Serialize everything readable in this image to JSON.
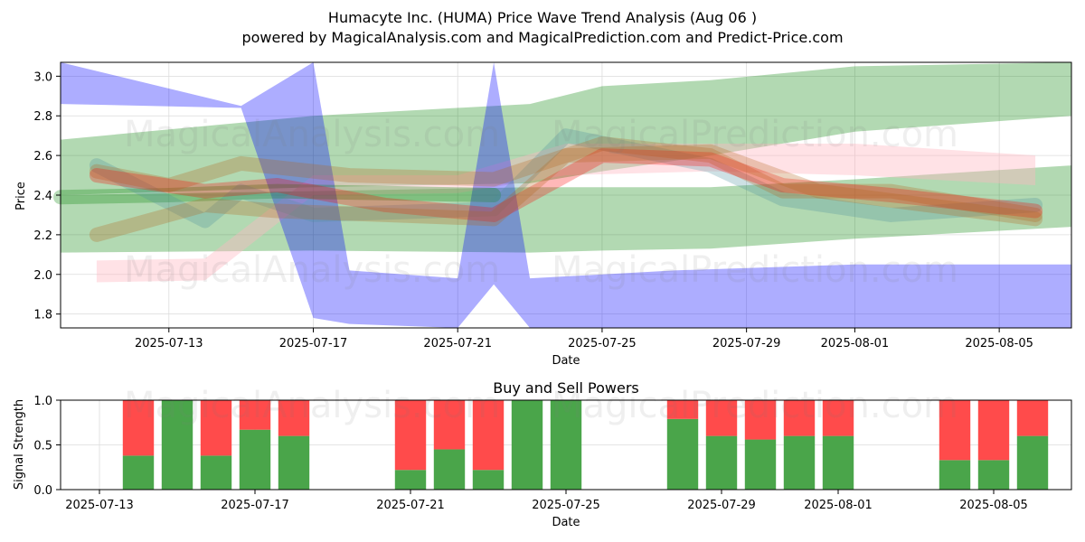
{
  "chart_data": [
    {
      "type": "area",
      "title_line1": "Humacyte Inc. (HUMA) Price Wave Trend Analysis (Aug 06 )",
      "title_line2": "powered by MagicalAnalysis.com and MagicalPrediction.com and Predict-Price.com",
      "xlabel": "Date",
      "ylabel": "Price",
      "xlim": [
        "2025-07-10",
        "2025-08-07"
      ],
      "ylim": [
        1.73,
        3.07
      ],
      "xticks": [
        "2025-07-13",
        "2025-07-17",
        "2025-07-21",
        "2025-07-25",
        "2025-07-29",
        "2025-08-01",
        "2025-08-05"
      ],
      "yticks": [
        1.8,
        2.0,
        2.2,
        2.4,
        2.6,
        2.8,
        3.0
      ],
      "ytick_labels": [
        "1.8",
        "2.0",
        "2.2",
        "2.4",
        "2.6",
        "2.8",
        "3.0"
      ],
      "watermarks": [
        "MagicalAnalysis.com",
        "MagicalPrediction.com",
        "MagicalAnalysis.com",
        "MagicalPrediction.com"
      ],
      "colors": {
        "blue": "#0000ff",
        "green": "#008000",
        "red": "#ff0000",
        "pink": "#ffb6c1",
        "orange": "#b5651d",
        "teal": "#4a8f9f"
      },
      "series": [
        {
          "name": "green-band-upper",
          "color": "green",
          "opacity": 0.3,
          "upper_x": [
            "2025-07-10",
            "2025-07-17",
            "2025-07-23",
            "2025-07-25",
            "2025-07-28",
            "2025-08-01",
            "2025-08-07"
          ],
          "upper": [
            2.68,
            2.8,
            2.86,
            2.95,
            2.98,
            3.05,
            3.07
          ],
          "lower": [
            2.4,
            2.44,
            2.46,
            2.52,
            2.6,
            2.72,
            2.8
          ]
        },
        {
          "name": "green-band-lower",
          "color": "green",
          "opacity": 0.3,
          "upper_x": [
            "2025-07-10",
            "2025-07-17",
            "2025-07-23",
            "2025-07-25",
            "2025-07-28",
            "2025-08-01",
            "2025-08-07"
          ],
          "upper": [
            2.4,
            2.42,
            2.44,
            2.44,
            2.44,
            2.48,
            2.55
          ],
          "lower": [
            2.11,
            2.12,
            2.11,
            2.12,
            2.13,
            2.18,
            2.24
          ]
        },
        {
          "name": "pink-band",
          "color": "pink",
          "opacity": 0.4,
          "upper_x": [
            "2025-07-11",
            "2025-07-14",
            "2025-07-17",
            "2025-07-21",
            "2025-07-24",
            "2025-07-28",
            "2025-08-01",
            "2025-08-06"
          ],
          "upper": [
            2.07,
            2.08,
            2.5,
            2.5,
            2.66,
            2.66,
            2.66,
            2.6
          ],
          "lower": [
            1.96,
            1.97,
            2.4,
            2.41,
            2.5,
            2.52,
            2.5,
            2.45
          ]
        },
        {
          "name": "blue-wave",
          "color": "blue",
          "opacity": 0.32,
          "x": [
            "2025-07-10",
            "2025-07-15",
            "2025-07-17",
            "2025-07-18",
            "2025-07-21",
            "2025-07-22",
            "2025-07-23",
            "2025-07-27",
            "2025-08-01",
            "2025-08-07"
          ],
          "upper": [
            3.07,
            2.85,
            3.07,
            2.02,
            1.98,
            3.07,
            1.98,
            2.02,
            2.05,
            2.05
          ],
          "lower": [
            2.86,
            2.84,
            1.78,
            1.75,
            1.73,
            1.95,
            1.73,
            1.73,
            1.73,
            1.73
          ]
        }
      ],
      "price_lines": [
        {
          "name": "price-green",
          "color": "green",
          "x": [
            "2025-07-10",
            "2025-07-13",
            "2025-07-16",
            "2025-07-19",
            "2025-07-22"
          ],
          "y": [
            2.39,
            2.4,
            2.42,
            2.41,
            2.4
          ]
        },
        {
          "name": "price-teal",
          "color": "teal",
          "x": [
            "2025-07-11",
            "2025-07-14",
            "2025-07-15",
            "2025-07-17",
            "2025-07-22",
            "2025-07-24",
            "2025-07-28",
            "2025-07-30",
            "2025-08-02",
            "2025-08-06"
          ],
          "y": [
            2.55,
            2.27,
            2.42,
            2.3,
            2.33,
            2.7,
            2.55,
            2.38,
            2.3,
            2.35
          ]
        },
        {
          "name": "price-orange",
          "color": "orange",
          "x": [
            "2025-07-11",
            "2025-07-13",
            "2025-07-15",
            "2025-07-18",
            "2025-07-22",
            "2025-07-25",
            "2025-07-28",
            "2025-07-30",
            "2025-08-02",
            "2025-08-06"
          ],
          "y": [
            2.52,
            2.45,
            2.56,
            2.5,
            2.48,
            2.66,
            2.6,
            2.42,
            2.42,
            2.3
          ]
        },
        {
          "name": "price-red",
          "color": "red",
          "x": [
            "2025-07-11",
            "2025-07-14",
            "2025-07-16",
            "2025-07-19",
            "2025-07-22",
            "2025-07-25",
            "2025-07-28",
            "2025-07-30",
            "2025-08-02",
            "2025-08-06"
          ],
          "y": [
            2.5,
            2.42,
            2.45,
            2.35,
            2.3,
            2.6,
            2.58,
            2.45,
            2.4,
            2.32
          ]
        },
        {
          "name": "price-brown",
          "color": "orange",
          "x": [
            "2025-07-11",
            "2025-07-14",
            "2025-07-16",
            "2025-07-19",
            "2025-07-22",
            "2025-07-24",
            "2025-07-28",
            "2025-07-31",
            "2025-08-06"
          ],
          "y": [
            2.2,
            2.35,
            2.32,
            2.3,
            2.28,
            2.6,
            2.62,
            2.42,
            2.28
          ]
        }
      ]
    },
    {
      "type": "bar",
      "title": "Buy and Sell Powers",
      "xlabel": "Date",
      "ylabel": "Signal Strength",
      "xlim": [
        "2025-07-12",
        "2025-08-07"
      ],
      "ylim": [
        0,
        1.0
      ],
      "xticks": [
        "2025-07-13",
        "2025-07-17",
        "2025-07-21",
        "2025-07-25",
        "2025-07-29",
        "2025-08-01",
        "2025-08-05"
      ],
      "yticks": [
        0.0,
        0.5,
        1.0
      ],
      "ytick_labels": [
        "0.0",
        "0.5",
        "1.0"
      ],
      "buy_color": "#4aa54a",
      "sell_color": "#ff4b4b",
      "categories": [
        "2025-07-14",
        "2025-07-15",
        "2025-07-16",
        "2025-07-17",
        "2025-07-18",
        "2025-07-21",
        "2025-07-22",
        "2025-07-23",
        "2025-07-24",
        "2025-07-25",
        "2025-07-28",
        "2025-07-29",
        "2025-07-30",
        "2025-07-31",
        "2025-08-01",
        "2025-08-04",
        "2025-08-05",
        "2025-08-06"
      ],
      "series": [
        {
          "name": "Buy",
          "values": [
            0.38,
            1.0,
            0.38,
            0.67,
            0.6,
            0.22,
            0.45,
            0.22,
            1.0,
            1.0,
            0.79,
            0.6,
            0.56,
            0.6,
            0.6,
            0.33,
            0.33,
            0.6
          ]
        },
        {
          "name": "Sell",
          "values": [
            0.62,
            0.0,
            0.62,
            0.33,
            0.4,
            0.78,
            0.55,
            0.78,
            0.0,
            0.0,
            0.21,
            0.4,
            0.44,
            0.4,
            0.4,
            0.67,
            0.67,
            0.4
          ]
        }
      ]
    }
  ]
}
